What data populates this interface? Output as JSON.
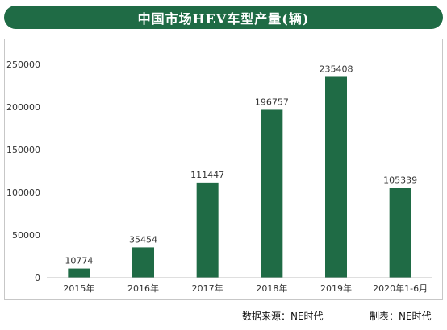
{
  "title": "中国市场HEV车型产量(辆)",
  "chart_data": {
    "type": "bar",
    "categories": [
      "2015年",
      "2016年",
      "2017年",
      "2018年",
      "2019年",
      "2020年1-6月"
    ],
    "values": [
      10774,
      35454,
      111447,
      196757,
      235408,
      105339
    ],
    "data_labels": [
      "10774",
      "35454",
      "111447",
      "196757",
      "235408",
      "105339"
    ],
    "y_ticks": [
      "0",
      "50000",
      "100000",
      "150000",
      "200000",
      "250000"
    ],
    "ylim": [
      0,
      250000
    ],
    "grid": false,
    "bar_color": "#1f6b45"
  },
  "footer": {
    "source": "数据来源：NE时代",
    "made_by": "制表：NE时代"
  },
  "colors": {
    "title_bg": "#1f6b45",
    "title_text": "#ffffff",
    "axis": "#bfbfbf",
    "label_text": "#333333"
  }
}
